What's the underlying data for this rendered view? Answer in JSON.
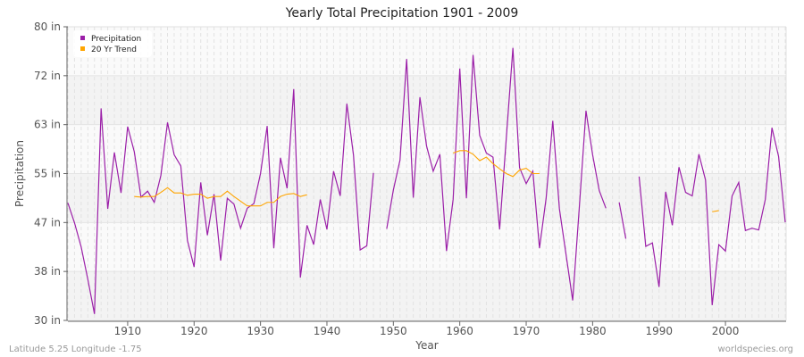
{
  "chart_data": {
    "type": "line",
    "title": "Yearly Total Precipitation 1901 - 2009",
    "xlabel": "Year",
    "ylabel": "Precipitation",
    "xlim": [
      1901,
      2009
    ],
    "ylim": [
      30,
      80
    ],
    "y_ticks": [
      {
        "v": 30,
        "label": "30 in"
      },
      {
        "v": 38.333,
        "label": "38 in"
      },
      {
        "v": 46.667,
        "label": "47 in"
      },
      {
        "v": 55,
        "label": "55 in"
      },
      {
        "v": 63.333,
        "label": "63 in"
      },
      {
        "v": 71.667,
        "label": "72 in"
      },
      {
        "v": 80,
        "label": "80 in"
      }
    ],
    "x_ticks": [
      1910,
      1920,
      1930,
      1940,
      1950,
      1960,
      1970,
      1980,
      1990,
      2000
    ],
    "legend_position": "top-left",
    "grid": true,
    "series": [
      {
        "name": "Precipitation",
        "color": "#9b1fa8",
        "start_year": 1901,
        "values": [
          50.0,
          46.6,
          42.5,
          37.0,
          31.1,
          66.1,
          49.0,
          58.6,
          51.7,
          63.0,
          58.7,
          51.0,
          52.0,
          50.1,
          54.7,
          63.7,
          58.2,
          56.3,
          43.6,
          39.1,
          53.5,
          44.5,
          51.5,
          40.2,
          50.8,
          49.8,
          45.7,
          49.1,
          49.9,
          55.0,
          63.1,
          42.3,
          57.7,
          52.5,
          69.4,
          37.3,
          46.2,
          42.9,
          50.6,
          45.5,
          55.4,
          51.2,
          66.9,
          58.1,
          42.0,
          42.7,
          55.1,
          null,
          45.6,
          52.2,
          57.3,
          74.5,
          50.9,
          68.0,
          59.7,
          55.4,
          58.3,
          41.8,
          50.6,
          72.9,
          50.8,
          75.2,
          61.5,
          58.5,
          57.8,
          45.5,
          61.0,
          76.4,
          56.0,
          53.3,
          55.4,
          42.3,
          50.8,
          64.0,
          49.0,
          41.2,
          33.4,
          49.3,
          65.7,
          58.2,
          52.1,
          49.1,
          null,
          50.1,
          43.9,
          null,
          54.5,
          42.6,
          43.2,
          35.7,
          51.9,
          46.2,
          56.1,
          51.8,
          51.2,
          58.3,
          53.9,
          32.6,
          42.9,
          41.8,
          51.2,
          53.5,
          45.3,
          45.7,
          45.4,
          50.6,
          62.8,
          57.9,
          46.7
        ]
      },
      {
        "name": "20 Yr Trend",
        "color": "#ffa500",
        "start_year": 1901,
        "values": [
          null,
          null,
          null,
          null,
          null,
          null,
          null,
          null,
          null,
          null,
          51.1,
          51.0,
          51.1,
          51.1,
          51.8,
          52.6,
          51.7,
          51.7,
          51.3,
          51.5,
          51.5,
          50.8,
          51.1,
          51.1,
          52.0,
          51.1,
          50.3,
          49.5,
          49.5,
          49.5,
          50.1,
          50.1,
          51.1,
          51.5,
          51.6,
          51.1,
          51.4,
          null,
          null,
          null,
          null,
          null,
          null,
          null,
          null,
          null,
          null,
          null,
          null,
          null,
          null,
          null,
          null,
          null,
          null,
          null,
          null,
          null,
          58.5,
          58.9,
          58.9,
          58.3,
          57.2,
          57.8,
          56.7,
          55.8,
          55.0,
          54.5,
          55.6,
          55.9,
          55.0,
          55.0,
          null,
          null,
          null,
          null,
          null,
          null,
          null,
          null,
          null,
          null,
          null,
          null,
          null,
          null,
          null,
          null,
          null,
          null,
          null,
          null,
          null,
          null,
          null,
          null,
          null,
          48.5,
          48.7,
          null,
          null,
          null,
          null,
          null,
          null,
          null,
          null,
          null,
          null
        ]
      }
    ]
  },
  "footer": {
    "left": "Latitude 5.25 Longitude -1.75",
    "right": "worldspecies.org"
  }
}
